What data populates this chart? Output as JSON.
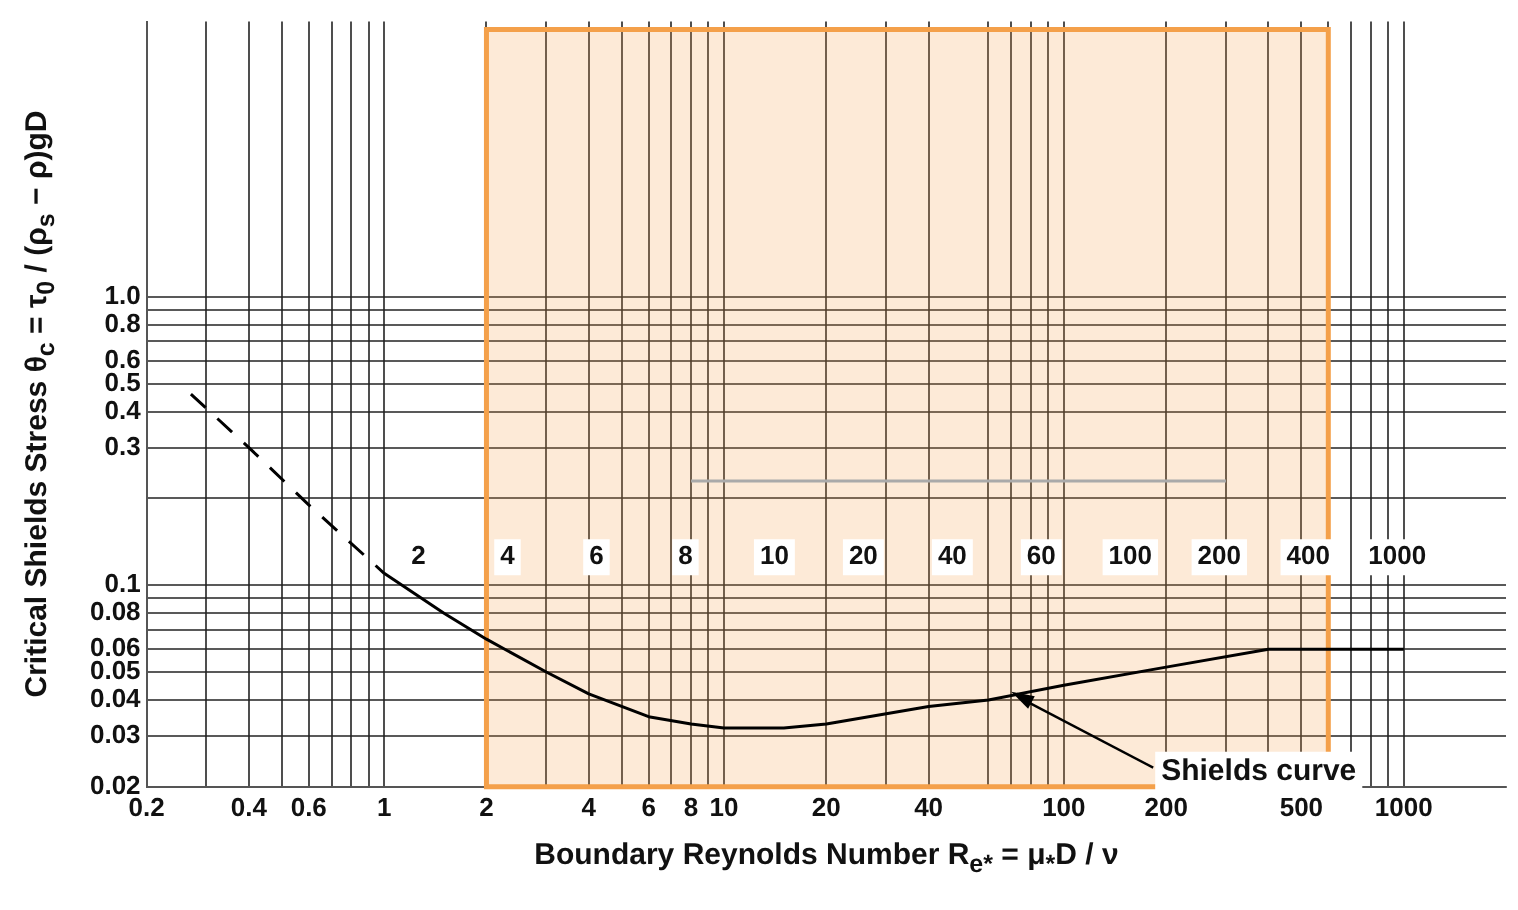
{
  "chart_data": {
    "type": "line",
    "xlabel": "Boundary Reynolds Number  R$_{e*}$ = μ$_{*}$D / ν",
    "ylabel": "Critical Shields Stress  θ$_{c}$ = τ$_{0}$ / (ρ$_{s}$ − ρ)gD",
    "log": "xy",
    "grid": true,
    "legend": false,
    "marker": "none",
    "xlim": [
      0.2,
      2000
    ],
    "ylim": [
      0.02,
      9
    ],
    "xticks": [
      0.2,
      {
        "value": 0.3,
        "label": null
      },
      0.4,
      {
        "value": 0.5,
        "label": null
      },
      0.6,
      {
        "value": 0.7,
        "label": null
      },
      {
        "value": 0.8,
        "label": null
      },
      {
        "value": 0.9,
        "label": null
      },
      1,
      2,
      {
        "value": 3,
        "label": null
      },
      4,
      {
        "value": 5,
        "label": null
      },
      6,
      {
        "value": 7,
        "label": null
      },
      8,
      {
        "value": 9,
        "label": null
      },
      10,
      20,
      {
        "value": 30,
        "label": null
      },
      40,
      {
        "value": 60,
        "label": null
      },
      {
        "value": 70,
        "label": null
      },
      {
        "value": 80,
        "label": null
      },
      {
        "value": 90,
        "label": null
      },
      100,
      200,
      {
        "value": 300,
        "label": null
      },
      {
        "value": 400,
        "label": null
      },
      500,
      {
        "value": 600,
        "label": null
      },
      {
        "value": 700,
        "label": null
      },
      {
        "value": 800,
        "label": null
      },
      {
        "value": 900,
        "label": null
      },
      1000
    ],
    "yticks": [
      0.02,
      0.03,
      0.04,
      0.05,
      0.06,
      {
        "value": 0.07,
        "label": null
      },
      0.08,
      {
        "value": 0.09,
        "label": null
      },
      0.1,
      {
        "value": 0.2,
        "label": null
      },
      0.3,
      0.4,
      0.5,
      0.6,
      {
        "value": 0.7,
        "label": null
      },
      0.8,
      {
        "value": 0.9,
        "label": null
      },
      {
        "value": 1,
        "label": "1.0"
      }
    ],
    "series": [
      {
        "color": "#000000",
        "line_style": "dashed",
        "x": [
          0.27,
          0.4,
          0.6,
          1
        ],
        "values": [
          0.46,
          0.3,
          0.19,
          0.11
        ]
      },
      {
        "name": "Shields curve",
        "color": "#000000",
        "line_style": "solid",
        "x": [
          1,
          1.5,
          2,
          3,
          4,
          6,
          8,
          10,
          15,
          20,
          40,
          60,
          100,
          200,
          400,
          500,
          1000
        ],
        "values": [
          0.11,
          0.08,
          0.065,
          0.05,
          0.042,
          0.035,
          0.033,
          0.032,
          0.032,
          0.033,
          0.038,
          0.04,
          0.045,
          0.052,
          0.06,
          0.06,
          0.06
        ]
      },
      {
        "color": "#aaaaaa",
        "line_style": "solid",
        "x": [
          8,
          300
        ],
        "values": [
          0.23,
          0.23
        ]
      }
    ],
    "bands": [
      {
        "axis": "x",
        "from": 2,
        "to": 600,
        "color": "#f4a04a"
      }
    ],
    "annotations": [
      "2",
      "4",
      "6",
      "8",
      "10",
      "20",
      "40",
      "60",
      "100",
      "200",
      "400",
      "1000"
    ]
  }
}
